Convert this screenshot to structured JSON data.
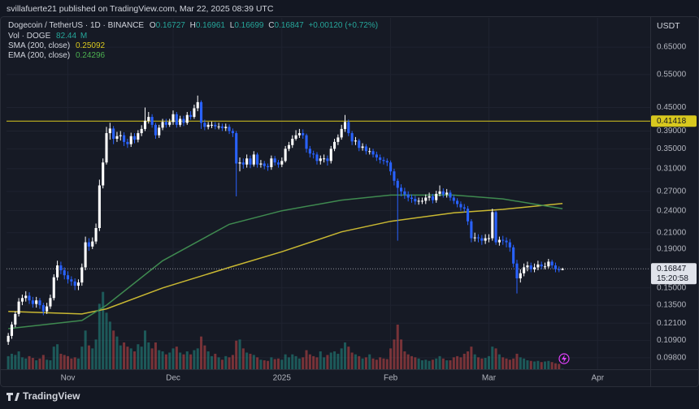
{
  "header": {
    "byline": "svillafuerte21 published on TradingView.com, Mar 22, 2025 08:39 UTC"
  },
  "chart_data": {
    "type": "candlestick",
    "symbol": "Dogecoin / TetherUS · 1D · BINANCE",
    "ohlc_labels": [
      "O",
      "H",
      "L",
      "C"
    ],
    "change": "+0.00120 (+0.72%)",
    "volume_name": "Vol · DOGE",
    "volume_unit": "M",
    "currency": "USDT",
    "countdown": "15:20:58",
    "up_color": "#ffffff",
    "down_color": "#2962ff",
    "volume_up_color": "#26a69a",
    "volume_down_color": "#ef5350",
    "open": [
      0.108,
      0.112,
      0.12,
      0.128,
      0.138,
      0.141,
      0.143,
      0.139,
      0.136,
      0.139,
      0.135,
      0.13,
      0.134,
      0.141,
      0.16,
      0.172,
      0.167,
      0.162,
      0.158,
      0.156,
      0.152,
      0.155,
      0.17,
      0.198,
      0.193,
      0.199,
      0.216,
      0.28,
      0.322,
      0.385,
      0.396,
      0.372,
      0.378,
      0.38,
      0.365,
      0.36,
      0.378,
      0.37,
      0.385,
      0.395,
      0.415,
      0.425,
      0.405,
      0.38,
      0.398,
      0.412,
      0.405,
      0.412,
      0.432,
      0.405,
      0.42,
      0.41,
      0.43,
      0.425,
      0.448,
      0.465,
      0.41,
      0.4,
      0.405,
      0.405,
      0.401,
      0.401,
      0.397,
      0.4,
      0.39,
      0.385,
      0.32,
      0.322,
      0.318,
      0.33,
      0.318,
      0.338,
      0.318,
      0.32,
      0.315,
      0.313,
      0.33,
      0.322,
      0.318,
      0.325,
      0.35,
      0.358,
      0.372,
      0.38,
      0.385,
      0.38,
      0.35,
      0.34,
      0.338,
      0.325,
      0.33,
      0.33,
      0.325,
      0.35,
      0.365,
      0.375,
      0.395,
      0.412,
      0.385,
      0.366,
      0.368,
      0.352,
      0.355,
      0.345,
      0.345,
      0.338,
      0.332,
      0.327,
      0.325,
      0.322,
      0.305,
      0.288,
      0.276,
      0.27,
      0.265,
      0.26,
      0.258,
      0.254,
      0.255,
      0.255,
      0.26,
      0.262,
      0.256,
      0.266,
      0.27,
      0.265,
      0.268,
      0.26,
      0.255,
      0.25,
      0.245,
      0.243,
      0.225,
      0.203,
      0.204,
      0.203,
      0.2,
      0.203,
      0.203,
      0.238,
      0.198,
      0.201,
      0.2,
      0.198,
      0.192,
      0.174,
      0.159,
      0.164,
      0.17,
      0.172,
      0.168,
      0.17,
      0.173,
      0.171,
      0.171,
      0.176,
      0.172,
      0.168,
      0.16727
    ],
    "high": [
      0.114,
      0.122,
      0.13,
      0.141,
      0.144,
      0.147,
      0.146,
      0.142,
      0.142,
      0.141,
      0.137,
      0.137,
      0.144,
      0.163,
      0.177,
      0.176,
      0.17,
      0.166,
      0.161,
      0.159,
      0.158,
      0.174,
      0.205,
      0.203,
      0.204,
      0.222,
      0.29,
      0.33,
      0.4,
      0.41,
      0.402,
      0.388,
      0.39,
      0.387,
      0.372,
      0.386,
      0.385,
      0.392,
      0.404,
      0.45,
      0.438,
      0.432,
      0.41,
      0.405,
      0.42,
      0.42,
      0.42,
      0.442,
      0.438,
      0.428,
      0.428,
      0.438,
      0.44,
      0.458,
      0.484,
      0.47,
      0.418,
      0.412,
      0.413,
      0.412,
      0.41,
      0.408,
      0.408,
      0.406,
      0.396,
      0.39,
      0.332,
      0.33,
      0.338,
      0.336,
      0.345,
      0.342,
      0.327,
      0.325,
      0.32,
      0.336,
      0.335,
      0.327,
      0.332,
      0.356,
      0.365,
      0.38,
      0.392,
      0.395,
      0.394,
      0.384,
      0.356,
      0.346,
      0.343,
      0.336,
      0.338,
      0.336,
      0.356,
      0.372,
      0.382,
      0.405,
      0.43,
      0.418,
      0.39,
      0.376,
      0.372,
      0.362,
      0.36,
      0.352,
      0.35,
      0.344,
      0.338,
      0.333,
      0.33,
      0.326,
      0.31,
      0.292,
      0.282,
      0.276,
      0.27,
      0.265,
      0.263,
      0.26,
      0.26,
      0.265,
      0.268,
      0.266,
      0.271,
      0.28,
      0.275,
      0.274,
      0.272,
      0.264,
      0.259,
      0.254,
      0.25,
      0.247,
      0.228,
      0.21,
      0.208,
      0.207,
      0.208,
      0.208,
      0.243,
      0.24,
      0.205,
      0.206,
      0.204,
      0.202,
      0.195,
      0.178,
      0.168,
      0.174,
      0.176,
      0.175,
      0.174,
      0.177,
      0.176,
      0.175,
      0.179,
      0.178,
      0.175,
      0.171,
      0.16961
    ],
    "low": [
      0.106,
      0.11,
      0.118,
      0.126,
      0.135,
      0.138,
      0.136,
      0.133,
      0.133,
      0.132,
      0.127,
      0.128,
      0.132,
      0.139,
      0.157,
      0.163,
      0.158,
      0.154,
      0.152,
      0.148,
      0.148,
      0.152,
      0.167,
      0.188,
      0.19,
      0.196,
      0.212,
      0.275,
      0.318,
      0.37,
      0.36,
      0.365,
      0.368,
      0.356,
      0.352,
      0.354,
      0.362,
      0.364,
      0.378,
      0.39,
      0.408,
      0.398,
      0.372,
      0.374,
      0.392,
      0.398,
      0.4,
      0.405,
      0.398,
      0.4,
      0.402,
      0.405,
      0.418,
      0.42,
      0.44,
      0.395,
      0.392,
      0.394,
      0.397,
      0.394,
      0.394,
      0.39,
      0.39,
      0.383,
      0.376,
      0.262,
      0.305,
      0.31,
      0.312,
      0.311,
      0.314,
      0.312,
      0.312,
      0.309,
      0.306,
      0.308,
      0.316,
      0.312,
      0.313,
      0.322,
      0.345,
      0.352,
      0.368,
      0.374,
      0.372,
      0.342,
      0.332,
      0.33,
      0.318,
      0.318,
      0.322,
      0.316,
      0.32,
      0.345,
      0.358,
      0.37,
      0.388,
      0.378,
      0.358,
      0.358,
      0.345,
      0.346,
      0.338,
      0.338,
      0.332,
      0.325,
      0.32,
      0.318,
      0.315,
      0.298,
      0.28,
      0.2,
      0.262,
      0.258,
      0.254,
      0.252,
      0.249,
      0.249,
      0.25,
      0.25,
      0.255,
      0.251,
      0.252,
      0.262,
      0.26,
      0.26,
      0.255,
      0.25,
      0.245,
      0.24,
      0.238,
      0.22,
      0.198,
      0.199,
      0.198,
      0.195,
      0.196,
      0.198,
      0.2,
      0.195,
      0.194,
      0.195,
      0.192,
      0.187,
      0.17,
      0.145,
      0.155,
      0.161,
      0.166,
      0.165,
      0.165,
      0.167,
      0.168,
      0.168,
      0.169,
      0.169,
      0.165,
      0.165,
      0.16699
    ],
    "close": [
      0.112,
      0.12,
      0.128,
      0.138,
      0.141,
      0.143,
      0.139,
      0.136,
      0.139,
      0.135,
      0.13,
      0.134,
      0.141,
      0.16,
      0.172,
      0.167,
      0.162,
      0.158,
      0.156,
      0.152,
      0.155,
      0.17,
      0.198,
      0.193,
      0.199,
      0.216,
      0.28,
      0.322,
      0.385,
      0.396,
      0.372,
      0.378,
      0.38,
      0.365,
      0.36,
      0.378,
      0.37,
      0.385,
      0.395,
      0.415,
      0.425,
      0.405,
      0.38,
      0.398,
      0.412,
      0.405,
      0.412,
      0.432,
      0.405,
      0.42,
      0.41,
      0.43,
      0.425,
      0.448,
      0.465,
      0.41,
      0.4,
      0.405,
      0.405,
      0.401,
      0.401,
      0.397,
      0.4,
      0.39,
      0.385,
      0.32,
      0.322,
      0.318,
      0.33,
      0.318,
      0.338,
      0.318,
      0.32,
      0.315,
      0.313,
      0.33,
      0.322,
      0.318,
      0.325,
      0.35,
      0.358,
      0.372,
      0.38,
      0.385,
      0.38,
      0.35,
      0.34,
      0.338,
      0.325,
      0.33,
      0.33,
      0.325,
      0.35,
      0.365,
      0.375,
      0.395,
      0.412,
      0.385,
      0.366,
      0.368,
      0.352,
      0.355,
      0.345,
      0.345,
      0.338,
      0.332,
      0.327,
      0.325,
      0.322,
      0.305,
      0.288,
      0.276,
      0.27,
      0.265,
      0.26,
      0.258,
      0.254,
      0.255,
      0.255,
      0.26,
      0.262,
      0.256,
      0.266,
      0.27,
      0.265,
      0.268,
      0.26,
      0.255,
      0.25,
      0.245,
      0.243,
      0.225,
      0.203,
      0.204,
      0.203,
      0.2,
      0.203,
      0.203,
      0.238,
      0.198,
      0.201,
      0.2,
      0.198,
      0.192,
      0.174,
      0.159,
      0.164,
      0.17,
      0.172,
      0.168,
      0.17,
      0.173,
      0.171,
      0.171,
      0.176,
      0.172,
      0.168,
      0.16727,
      0.16847
    ],
    "volume": [
      2200,
      2600,
      2400,
      3000,
      2000,
      1800,
      2200,
      1900,
      1500,
      1800,
      2400,
      1600,
      1500,
      3800,
      4200,
      2600,
      2400,
      2200,
      1800,
      2000,
      1800,
      3800,
      6500,
      4000,
      3500,
      5000,
      11000,
      13000,
      9500,
      8000,
      6500,
      5500,
      4000,
      4500,
      3800,
      3500,
      3000,
      4200,
      3800,
      6500,
      4500,
      3500,
      4500,
      3200,
      3000,
      2500,
      2800,
      3500,
      3800,
      2800,
      2500,
      3000,
      2500,
      3200,
      3500,
      5500,
      4000,
      3000,
      2200,
      2600,
      2000,
      1600,
      2200,
      2000,
      2400,
      4800,
      5000,
      3500,
      2800,
      2600,
      2400,
      2000,
      1600,
      1500,
      1400,
      2000,
      1700,
      1800,
      1600,
      2500,
      2000,
      2500,
      2200,
      1800,
      2000,
      3200,
      2500,
      2200,
      2000,
      3000,
      2000,
      2400,
      2800,
      3000,
      2600,
      3500,
      4500,
      3800,
      2800,
      2500,
      2200,
      1800,
      2000,
      2500,
      1800,
      1600,
      2000,
      1800,
      1700,
      3500,
      5000,
      7500,
      5000,
      3000,
      2500,
      2200,
      2000,
      1800,
      1500,
      1600,
      1400,
      1600,
      1800,
      2200,
      1800,
      1500,
      1500,
      2000,
      2200,
      2000,
      2600,
      3000,
      3800,
      2500,
      2000,
      1800,
      1900,
      2200,
      3800,
      3500,
      2500,
      2000,
      1800,
      1600,
      1800,
      2600,
      2000,
      1800,
      1500,
      1400,
      1300,
      1400,
      1200,
      1300,
      1400,
      1200,
      1000,
      900,
      82.44
    ],
    "volume_ylim": [
      0,
      15000
    ],
    "series": [
      {
        "name": "SMA (200, close)",
        "color": "#c9b832",
        "x": [
          0,
          21,
          28,
          44,
          63,
          78,
          95,
          109,
          127,
          141,
          158
        ],
        "values": [
          0.13,
          0.128,
          0.132,
          0.15,
          0.17,
          0.187,
          0.211,
          0.225,
          0.237,
          0.242,
          0.25092
        ]
      },
      {
        "name": "EMA (200, close)",
        "color": "#3f8a50",
        "x": [
          0,
          21,
          28,
          44,
          63,
          78,
          95,
          109,
          127,
          141,
          158
        ],
        "values": [
          0.117,
          0.123,
          0.135,
          0.177,
          0.221,
          0.24,
          0.256,
          0.264,
          0.264,
          0.258,
          0.24296
        ]
      }
    ],
    "hline": {
      "value": 0.41418,
      "color": "#d8c81e"
    },
    "log_scale": true,
    "grid": true,
    "xlim": [
      -0.5,
      183
    ],
    "xticks": [
      {
        "value": 17,
        "label": "Nov"
      },
      {
        "value": 47,
        "label": "Dec"
      },
      {
        "value": 78,
        "label": "2025"
      },
      {
        "value": 109,
        "label": "Feb"
      },
      {
        "value": 137,
        "label": "Mar"
      },
      {
        "value": 168,
        "label": "Apr"
      }
    ],
    "ylim": [
      0.0914,
      0.777
    ],
    "yticks": [
      {
        "value": 0.65,
        "label": "0.65000"
      },
      {
        "value": 0.55,
        "label": "0.55000"
      },
      {
        "value": 0.45,
        "label": "0.45000"
      },
      {
        "value": 0.39,
        "label": "0.39000"
      },
      {
        "value": 0.35,
        "label": "0.35000"
      },
      {
        "value": 0.31,
        "label": "0.31000"
      },
      {
        "value": 0.27,
        "label": "0.27000"
      },
      {
        "value": 0.24,
        "label": "0.24000"
      },
      {
        "value": 0.21,
        "label": "0.21000"
      },
      {
        "value": 0.19,
        "label": "0.19000"
      },
      {
        "value": 0.15,
        "label": "0.15000"
      },
      {
        "value": 0.135,
        "label": "0.13500"
      },
      {
        "value": 0.121,
        "label": "0.12100"
      },
      {
        "value": 0.109,
        "label": "0.10900"
      },
      {
        "value": 0.098,
        "label": "0.09800"
      }
    ]
  },
  "footer": {
    "brand": "TradingView"
  }
}
